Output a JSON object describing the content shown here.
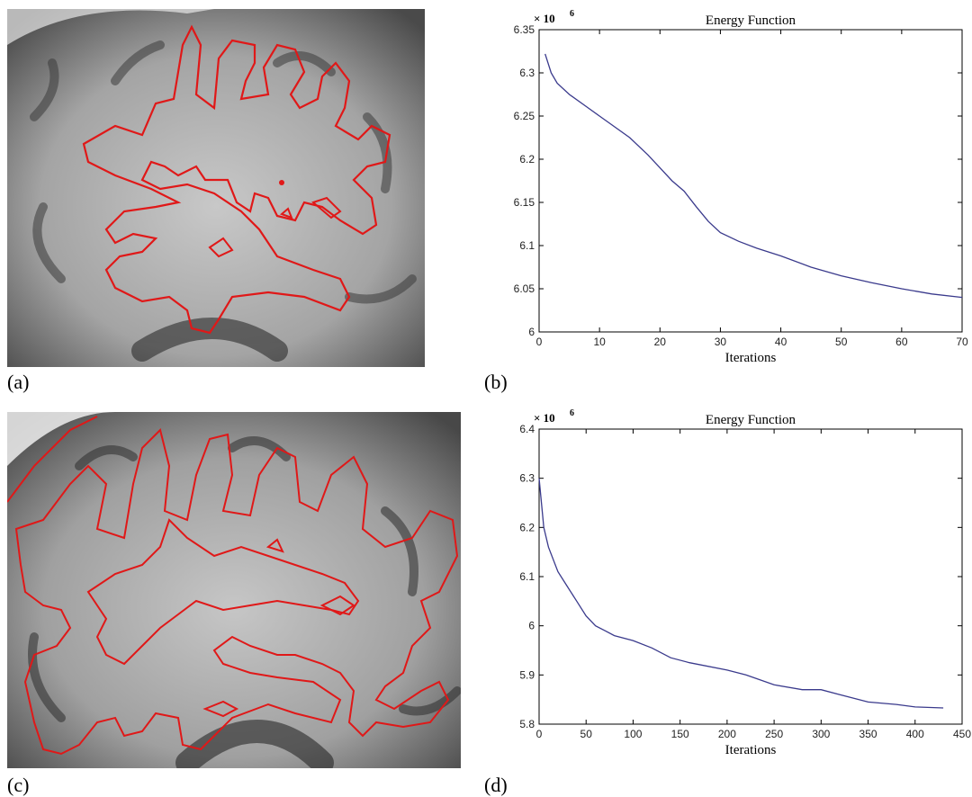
{
  "captions": {
    "a": "(a)",
    "b": "(b)",
    "c": "(c)",
    "d": "(d)"
  },
  "colors": {
    "contour": "#e01818",
    "curve": "#3a3a8c",
    "axis": "#000000"
  },
  "chart_data": [
    {
      "type": "line",
      "title": "Energy Function",
      "xlabel": "Iterations",
      "ylabel": "",
      "exponent_label": "× 10",
      "exponent_power": "6",
      "xlim": [
        0,
        70
      ],
      "ylim": [
        6.0,
        6.35
      ],
      "xticks": [
        0,
        10,
        20,
        30,
        40,
        50,
        60,
        70
      ],
      "yticks": [
        6,
        6.05,
        6.1,
        6.15,
        6.2,
        6.25,
        6.3,
        6.35
      ],
      "ytick_labels": [
        "6",
        "6.05",
        "6.1",
        "6.15",
        "6.2",
        "6.25",
        "6.3",
        "6.35"
      ],
      "series": [
        {
          "x": [
            1,
            2,
            3,
            5,
            8,
            10,
            12,
            15,
            18,
            20,
            22,
            24,
            26,
            28,
            30,
            33,
            36,
            40,
            45,
            50,
            55,
            60,
            65,
            70
          ],
          "y": [
            6.322,
            6.3,
            6.288,
            6.275,
            6.26,
            6.25,
            6.24,
            6.225,
            6.205,
            6.19,
            6.175,
            6.163,
            6.145,
            6.128,
            6.115,
            6.105,
            6.097,
            6.088,
            6.075,
            6.065,
            6.057,
            6.05,
            6.044,
            6.04
          ]
        }
      ]
    },
    {
      "type": "line",
      "title": "Energy Function",
      "xlabel": "Iterations",
      "ylabel": "",
      "exponent_label": "× 10",
      "exponent_power": "6",
      "xlim": [
        0,
        450
      ],
      "ylim": [
        5.8,
        6.4
      ],
      "xticks": [
        0,
        50,
        100,
        150,
        200,
        250,
        300,
        350,
        400,
        450
      ],
      "yticks": [
        5.8,
        5.9,
        6.0,
        6.1,
        6.2,
        6.3,
        6.4
      ],
      "ytick_labels": [
        "5.8",
        "5.9",
        "6",
        "6.1",
        "6.2",
        "6.3",
        "6.4"
      ],
      "series": [
        {
          "x": [
            0,
            5,
            10,
            20,
            30,
            40,
            50,
            60,
            70,
            80,
            100,
            120,
            140,
            160,
            200,
            220,
            250,
            280,
            300,
            320,
            350,
            380,
            400,
            430
          ],
          "y": [
            6.3,
            6.2,
            6.16,
            6.11,
            6.08,
            6.05,
            6.02,
            6.0,
            5.99,
            5.98,
            5.97,
            5.955,
            5.935,
            5.925,
            5.91,
            5.9,
            5.88,
            5.87,
            5.87,
            5.86,
            5.845,
            5.84,
            5.835,
            5.833
          ]
        }
      ]
    }
  ]
}
